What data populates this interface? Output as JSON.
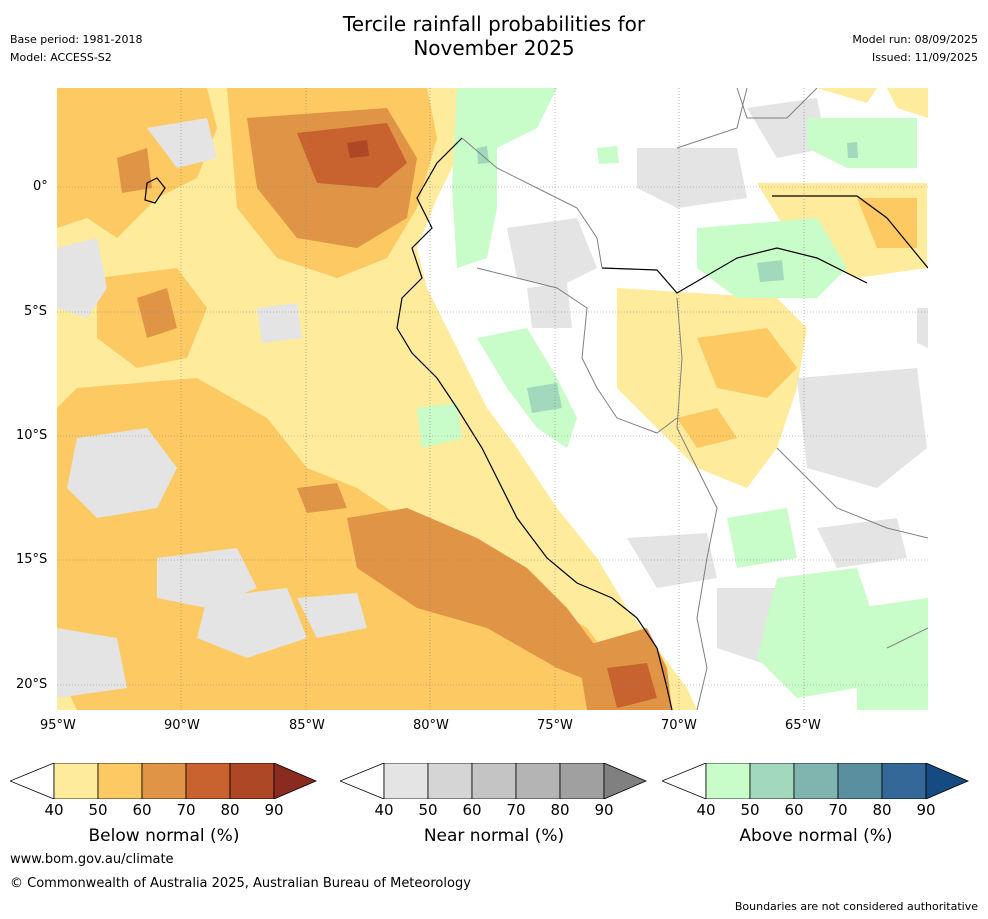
{
  "header": {
    "title_line1": "Tercile rainfall probabilities for",
    "title_line2": "November 2025",
    "base_period": "Base period: 1981-2018",
    "model": "Model: ACCESS-S2",
    "model_run": "Model run: 08/09/2025",
    "issued": "Issued: 11/09/2025"
  },
  "map": {
    "lat_labels": [
      "0°",
      "5°S",
      "10°S",
      "15°S",
      "20°S"
    ],
    "lon_labels": [
      "95°W",
      "90°W",
      "85°W",
      "80°W",
      "75°W",
      "70°W",
      "65°W"
    ]
  },
  "legends": [
    {
      "title": "Below normal (%)",
      "ticks": [
        "40",
        "50",
        "60",
        "70",
        "80",
        "90"
      ],
      "colors": [
        "#ffeb9c",
        "#fdc962",
        "#e09446",
        "#c8622e",
        "#ad4726",
        "#8b2a1e"
      ]
    },
    {
      "title": "Near normal (%)",
      "ticks": [
        "40",
        "50",
        "60",
        "70",
        "80",
        "90"
      ],
      "colors": [
        "#e4e4e4",
        "#d5d5d5",
        "#c4c4c4",
        "#b4b4b4",
        "#a0a0a0",
        "#808080"
      ]
    },
    {
      "title": "Above normal (%)",
      "ticks": [
        "40",
        "50",
        "60",
        "70",
        "80",
        "90"
      ],
      "colors": [
        "#c8fcc8",
        "#a2d8bc",
        "#80b4ae",
        "#5a8fa0",
        "#336898",
        "#154a82"
      ]
    }
  ],
  "footer": {
    "website": "www.bom.gov.au/climate",
    "copyright": "© Commonwealth of Australia 2025, Australian Bureau of Meteorology",
    "disclaimer": "Boundaries are not considered authoritative"
  }
}
